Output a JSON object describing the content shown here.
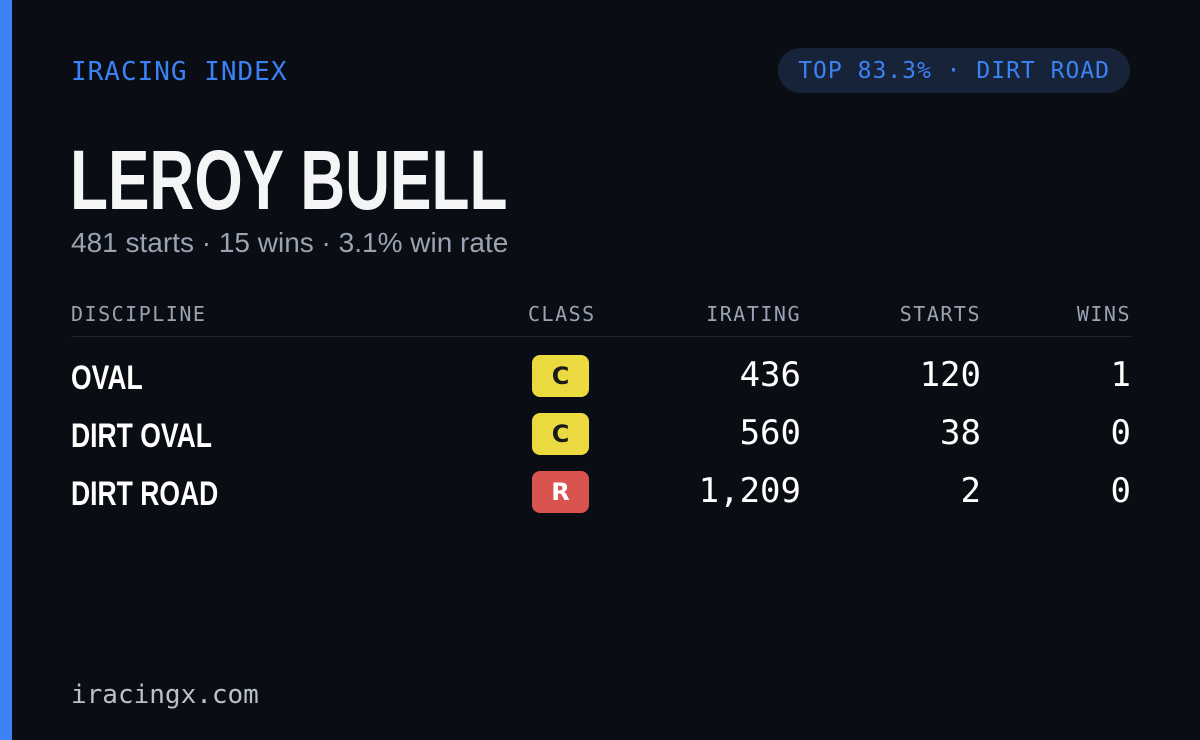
{
  "brand": "IRACING INDEX",
  "badge": "TOP 83.3% · DIRT ROAD",
  "driver": {
    "name": "LEROY BUELL",
    "summary": "481 starts · 15 wins · 3.1% win rate"
  },
  "table": {
    "headers": {
      "discipline": "DISCIPLINE",
      "class": "CLASS",
      "irating": "IRATING",
      "starts": "STARTS",
      "wins": "WINS"
    },
    "rows": [
      {
        "discipline": "OVAL",
        "class": "C",
        "class_color": "#ebd940",
        "class_text_color": "#1a1a1a",
        "irating": "436",
        "starts": "120",
        "wins": "1"
      },
      {
        "discipline": "DIRT OVAL",
        "class": "C",
        "class_color": "#ebd940",
        "class_text_color": "#1a1a1a",
        "irating": "560",
        "starts": "38",
        "wins": "0"
      },
      {
        "discipline": "DIRT ROAD",
        "class": "R",
        "class_color": "#d9534f",
        "class_text_color": "#ffffff",
        "irating": "1,209",
        "starts": "2",
        "wins": "0"
      }
    ]
  },
  "footer": "iracingx.com",
  "colors": {
    "accent": "#3b82f6",
    "background": "#0a0d14",
    "muted": "#9aa3b2"
  }
}
